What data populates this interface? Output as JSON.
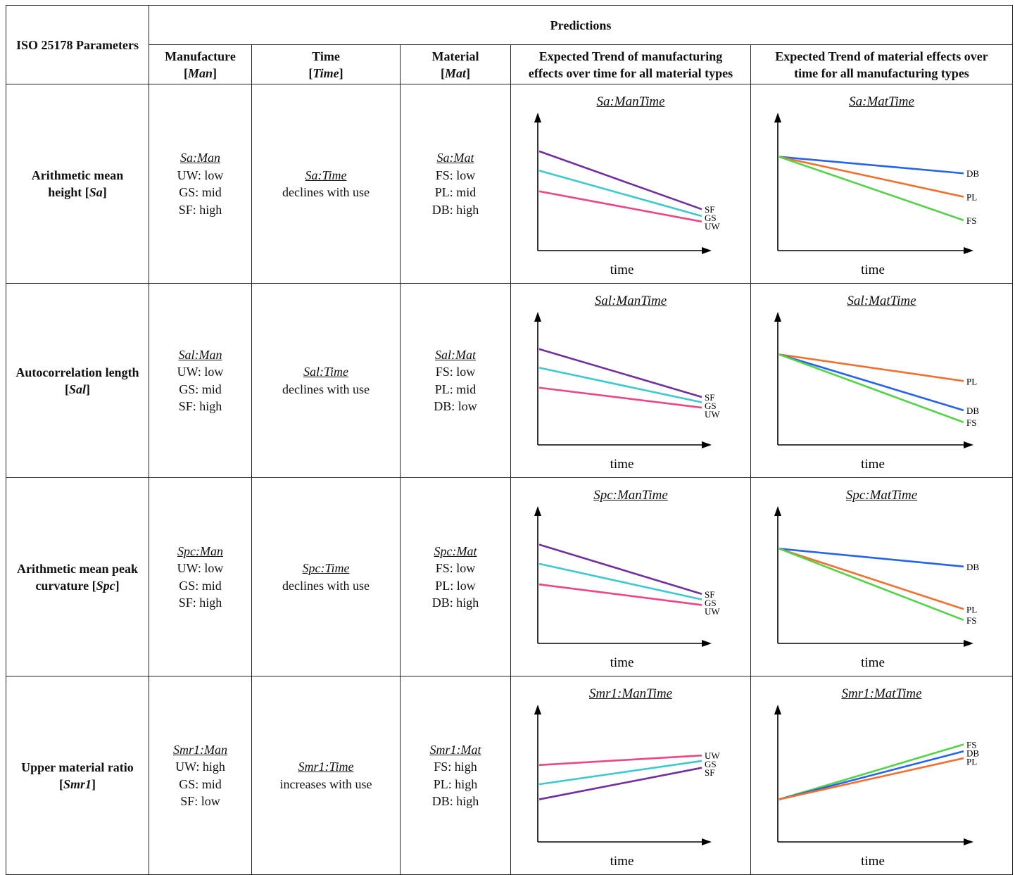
{
  "header": {
    "param_col": "ISO 25178 Parameters",
    "predictions": "Predictions",
    "manufacture": [
      "Manufacture",
      "Man"
    ],
    "time": [
      "Time",
      "Time"
    ],
    "material": [
      "Material",
      "Mat"
    ],
    "man_trend": [
      "Expected Trend of manufacturing",
      "effects over time for all material types"
    ],
    "mat_trend": [
      "Expected Trend of material effects over",
      "time for all manufacturing types"
    ]
  },
  "rows": [
    {
      "param": [
        "Arithmetic mean",
        "height [",
        "Sa",
        "]"
      ],
      "man": {
        "title": "Sa:Man",
        "lines": [
          "UW: low",
          "GS: mid",
          "SF: high"
        ]
      },
      "time": {
        "title": "Sa:Time",
        "text": "declines with use"
      },
      "mat": {
        "title": "Sa:Mat",
        "lines": [
          "FS: low",
          "PL: mid",
          "DB: high"
        ]
      },
      "man_chart_title": "Sa:ManTime",
      "mat_chart_title": "Sa:MatTime"
    },
    {
      "param": [
        "Autocorrelation length",
        "[",
        "Sal",
        "]"
      ],
      "man": {
        "title": "Sal:Man",
        "lines": [
          "UW: low",
          "GS: mid",
          "SF: high"
        ]
      },
      "time": {
        "title": "Sal:Time",
        "text": "declines with use"
      },
      "mat": {
        "title": "Sal:Mat",
        "lines": [
          "FS: low",
          "PL: mid",
          "DB: low"
        ]
      },
      "man_chart_title": "Sal:ManTime",
      "mat_chart_title": "Sal:MatTime"
    },
    {
      "param": [
        "Arithmetic mean peak",
        "curvature [",
        "Spc",
        "]"
      ],
      "man": {
        "title": "Spc:Man",
        "lines": [
          "UW: low",
          "GS: mid",
          "SF: high"
        ]
      },
      "time": {
        "title": "Spc:Time",
        "text": "declines with use"
      },
      "mat": {
        "title": "Spc:Mat",
        "lines": [
          "FS: low",
          "PL: low",
          "DB: high"
        ]
      },
      "man_chart_title": "Spc:ManTime",
      "mat_chart_title": "Spc:MatTime"
    },
    {
      "param": [
        "Upper material ratio",
        "[",
        "Smr1",
        "]"
      ],
      "man": {
        "title": "Smr1:Man",
        "lines": [
          "UW: high",
          "GS: mid",
          "SF: low"
        ]
      },
      "time": {
        "title": "Smr1:Time",
        "text": "increases with use"
      },
      "mat": {
        "title": "Smr1:Mat",
        "lines": [
          "FS: high",
          "PL: high",
          "DB: high"
        ]
      },
      "man_chart_title": "Smr1:ManTime",
      "mat_chart_title": "Smr1:MatTime"
    }
  ],
  "chart_data": [
    {
      "type": "line",
      "title": "Sa:ManTime",
      "xlabel": "time",
      "ylim": [
        0,
        1
      ],
      "series": [
        {
          "name": "SF",
          "color": "#7030a0",
          "start": 0.72,
          "end": 0.3
        },
        {
          "name": "GS",
          "color": "#3ec8d0",
          "start": 0.58,
          "end": 0.25
        },
        {
          "name": "UW",
          "color": "#ec4683",
          "start": 0.43,
          "end": 0.21
        }
      ]
    },
    {
      "type": "line",
      "title": "Sa:MatTime",
      "xlabel": "time",
      "ylim": [
        0,
        1
      ],
      "series": [
        {
          "name": "DB",
          "color": "#2563eb",
          "start": 0.68,
          "end": 0.56
        },
        {
          "name": "PL",
          "color": "#f07030",
          "start": 0.68,
          "end": 0.39
        },
        {
          "name": "FS",
          "color": "#55d24a",
          "start": 0.68,
          "end": 0.22
        }
      ]
    },
    {
      "type": "line",
      "title": "Sal:ManTime",
      "xlabel": "time",
      "ylim": [
        0,
        1
      ],
      "series": [
        {
          "name": "SF",
          "color": "#7030a0",
          "start": 0.72,
          "end": 0.36
        },
        {
          "name": "GS",
          "color": "#3ec8d0",
          "start": 0.58,
          "end": 0.32
        },
        {
          "name": "UW",
          "color": "#ec4683",
          "start": 0.43,
          "end": 0.28
        }
      ]
    },
    {
      "type": "line",
      "title": "Sal:MatTime",
      "xlabel": "time",
      "ylim": [
        0,
        1
      ],
      "series": [
        {
          "name": "PL",
          "color": "#f07030",
          "start": 0.68,
          "end": 0.48
        },
        {
          "name": "DB",
          "color": "#2563eb",
          "start": 0.68,
          "end": 0.26
        },
        {
          "name": "FS",
          "color": "#55d24a",
          "start": 0.68,
          "end": 0.17
        }
      ]
    },
    {
      "type": "line",
      "title": "Spc:ManTime",
      "xlabel": "time",
      "ylim": [
        0,
        1
      ],
      "series": [
        {
          "name": "SF",
          "color": "#7030a0",
          "start": 0.72,
          "end": 0.36
        },
        {
          "name": "GS",
          "color": "#3ec8d0",
          "start": 0.58,
          "end": 0.32
        },
        {
          "name": "UW",
          "color": "#ec4683",
          "start": 0.43,
          "end": 0.28
        }
      ]
    },
    {
      "type": "line",
      "title": "Spc:MatTime",
      "xlabel": "time",
      "ylim": [
        0,
        1
      ],
      "series": [
        {
          "name": "DB",
          "color": "#2563eb",
          "start": 0.69,
          "end": 0.56
        },
        {
          "name": "PL",
          "color": "#f07030",
          "start": 0.69,
          "end": 0.25
        },
        {
          "name": "FS",
          "color": "#55d24a",
          "start": 0.69,
          "end": 0.17
        }
      ]
    },
    {
      "type": "line",
      "title": "Smr1:ManTime",
      "xlabel": "time",
      "ylim": [
        0,
        1
      ],
      "series": [
        {
          "name": "UW",
          "color": "#ec4683",
          "start": 0.56,
          "end": 0.63
        },
        {
          "name": "GS",
          "color": "#3ec8d0",
          "start": 0.42,
          "end": 0.59
        },
        {
          "name": "SF",
          "color": "#7030a0",
          "start": 0.31,
          "end": 0.54
        }
      ]
    },
    {
      "type": "line",
      "title": "Smr1:MatTime",
      "xlabel": "time",
      "ylim": [
        0,
        1
      ],
      "series": [
        {
          "name": "FS",
          "color": "#55d24a",
          "start": 0.31,
          "end": 0.71
        },
        {
          "name": "DB",
          "color": "#2563eb",
          "start": 0.31,
          "end": 0.66
        },
        {
          "name": "PL",
          "color": "#f07030",
          "start": 0.31,
          "end": 0.61
        }
      ]
    }
  ]
}
